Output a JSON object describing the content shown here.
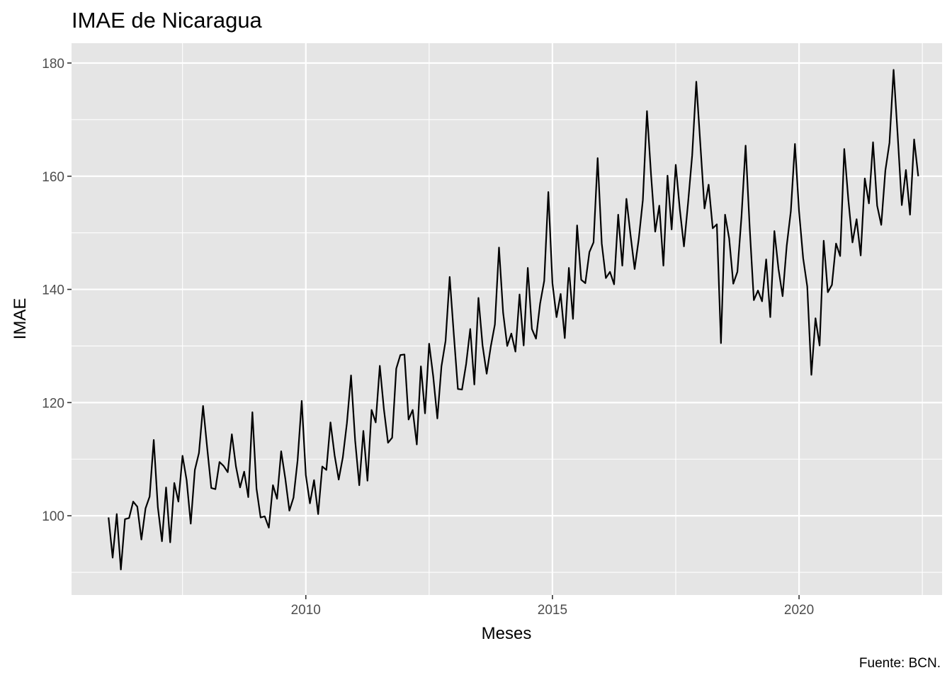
{
  "chart_data": {
    "type": "line",
    "title": "IMAE de Nicaragua",
    "xlabel": "Meses",
    "ylabel": "IMAE",
    "caption": "Fuente: BCN.",
    "grid": true,
    "xlim": [
      2005.25,
      2022.9
    ],
    "ylim": [
      86,
      183.5
    ],
    "x_ticks": [
      2010,
      2015,
      2020
    ],
    "y_ticks": [
      100,
      120,
      140,
      160,
      180
    ],
    "series_color": "#000000",
    "panel_color": "#e5e5e5",
    "start_year": 2006,
    "start_month": 1,
    "values": [
      99.7,
      92.6,
      100.3,
      90.5,
      99.4,
      99.6,
      102.5,
      101.6,
      95.8,
      101.3,
      103.4,
      113.4,
      101.5,
      95.5,
      105.0,
      95.3,
      105.8,
      102.5,
      110.6,
      106.3,
      98.6,
      108.1,
      111.1,
      119.4,
      112.0,
      104.9,
      104.7,
      109.5,
      108.8,
      107.7,
      114.4,
      108.7,
      105.0,
      107.8,
      103.3,
      118.3,
      104.8,
      99.7,
      99.9,
      97.9,
      105.4,
      103.0,
      111.4,
      106.6,
      100.9,
      103.2,
      109.8,
      120.3,
      107.2,
      102.2,
      106.3,
      100.3,
      108.7,
      108.1,
      116.5,
      110.7,
      106.4,
      110.3,
      116.4,
      124.8,
      113.3,
      105.4,
      115.0,
      106.2,
      118.7,
      116.5,
      126.5,
      118.8,
      112.9,
      113.8,
      126.0,
      128.4,
      128.5,
      117.0,
      118.7,
      112.6,
      126.4,
      118.1,
      130.4,
      124.6,
      117.2,
      126.4,
      130.9,
      142.2,
      132.1,
      122.4,
      122.3,
      126.8,
      133.0,
      123.2,
      138.5,
      130.1,
      125.1,
      129.9,
      133.8,
      147.4,
      135.9,
      130.0,
      132.2,
      129.0,
      139.1,
      130.1,
      143.8,
      133.0,
      131.3,
      137.5,
      141.5,
      157.2,
      141.1,
      135.1,
      139.2,
      131.4,
      143.8,
      134.8,
      151.3,
      141.7,
      141.1,
      146.6,
      148.3,
      163.2,
      148.1,
      142.0,
      143.1,
      140.9,
      153.2,
      144.2,
      156.0,
      149.6,
      143.6,
      148.9,
      155.8,
      171.5,
      160.2,
      150.2,
      154.8,
      144.2,
      160.1,
      150.6,
      162.0,
      154.1,
      147.6,
      155.3,
      163.7,
      176.7,
      165.5,
      154.3,
      158.5,
      150.8,
      151.5,
      130.5,
      153.2,
      149.0,
      141.0,
      143.1,
      152.9,
      165.4,
      150.8,
      138.1,
      139.8,
      137.9,
      145.3,
      135.1,
      150.3,
      143.6,
      138.8,
      147.7,
      153.8,
      165.7,
      153.8,
      145.5,
      140.5,
      124.9,
      134.9,
      130.1,
      148.6,
      139.5,
      140.8,
      148.1,
      145.9,
      164.8,
      155.8,
      148.3,
      152.4,
      146.0,
      159.6,
      155.2,
      166.0,
      154.8,
      151.4,
      161.0,
      165.9,
      178.8,
      167.2,
      154.9,
      161.1,
      153.2,
      166.5,
      160.0
    ]
  }
}
